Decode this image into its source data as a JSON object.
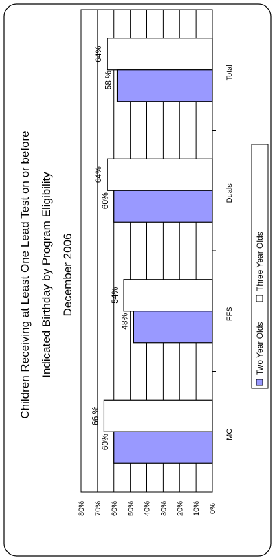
{
  "chart_data": {
    "type": "bar",
    "orientation": "vertical, page rotated 90° counter-clockwise",
    "title_lines": [
      "Children Receiving at Least One Lead Test on or before",
      "Indicated Birthday by Program Eligibility",
      "December 2006"
    ],
    "categories": [
      "MC",
      "FFS",
      "Duals",
      "Total"
    ],
    "series": [
      {
        "name": "Two Year Olds",
        "values": [
          60,
          48,
          60,
          58
        ],
        "labels": [
          "60%",
          "48%",
          "60%",
          "58 %"
        ],
        "color": "#9999ff"
      },
      {
        "name": "Three Year Olds",
        "values": [
          66,
          54,
          64,
          64
        ],
        "labels": [
          "66 %",
          "54%",
          "64%",
          "64%"
        ],
        "color": "#ffffff"
      }
    ],
    "y_ticks": [
      "0%",
      "10%",
      "20%",
      "30%",
      "40%",
      "50%",
      "60%",
      "70%",
      "80%"
    ],
    "ylim": [
      0,
      80
    ],
    "grid": true,
    "legend_position": "bottom"
  }
}
